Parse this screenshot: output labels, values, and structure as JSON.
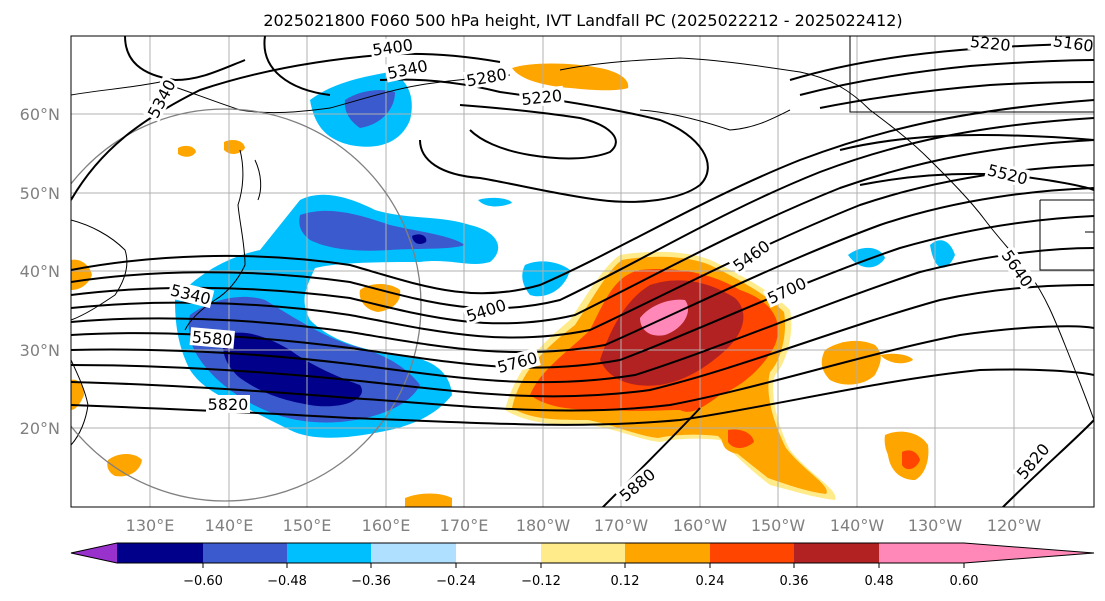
{
  "title": "2025021800 F060 500 hPa height, IVT Landfall PC (2025022212 - 2025022412)",
  "map": {
    "lat_ticks": [
      "20°N",
      "30°N",
      "40°N",
      "50°N",
      "60°N"
    ],
    "lon_ticks": [
      "130°E",
      "140°E",
      "150°E",
      "160°E",
      "170°E",
      "180°W",
      "170°W",
      "160°W",
      "150°W",
      "140°W",
      "130°W",
      "120°W"
    ],
    "height_contour_labels": [
      "5400",
      "5340",
      "5280",
      "5220",
      "5340",
      "5220",
      "5160",
      "5520",
      "5460",
      "5700",
      "5640",
      "5400",
      "5340",
      "5580",
      "5760",
      "5820",
      "5880",
      "5820"
    ]
  },
  "colorbar": {
    "tick_labels": [
      "−0.60",
      "−0.48",
      "−0.36",
      "−0.24",
      "−0.12",
      "0.12",
      "0.24",
      "0.36",
      "0.48",
      "0.60"
    ],
    "colors": [
      "#9932cc",
      "#00008b",
      "#3a5acd",
      "#00bfff",
      "#b0e0ff",
      "#ffffff",
      "#ffeb8a",
      "#ffa500",
      "#ff4500",
      "#b22222",
      "#ff88b8"
    ]
  },
  "colors": {
    "contour": "#000000",
    "gridline": "#b0b0b0",
    "coast": "#000000",
    "circle": "#808080"
  }
}
